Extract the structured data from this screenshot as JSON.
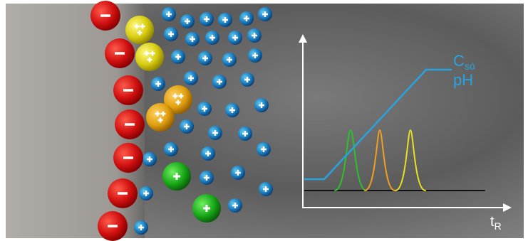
{
  "chart_labels": {
    "salt": {
      "base": "C",
      "sub": "só"
    },
    "ph": "pH"
  },
  "x_axis": {
    "base": "t",
    "sub": "R"
  }
}
